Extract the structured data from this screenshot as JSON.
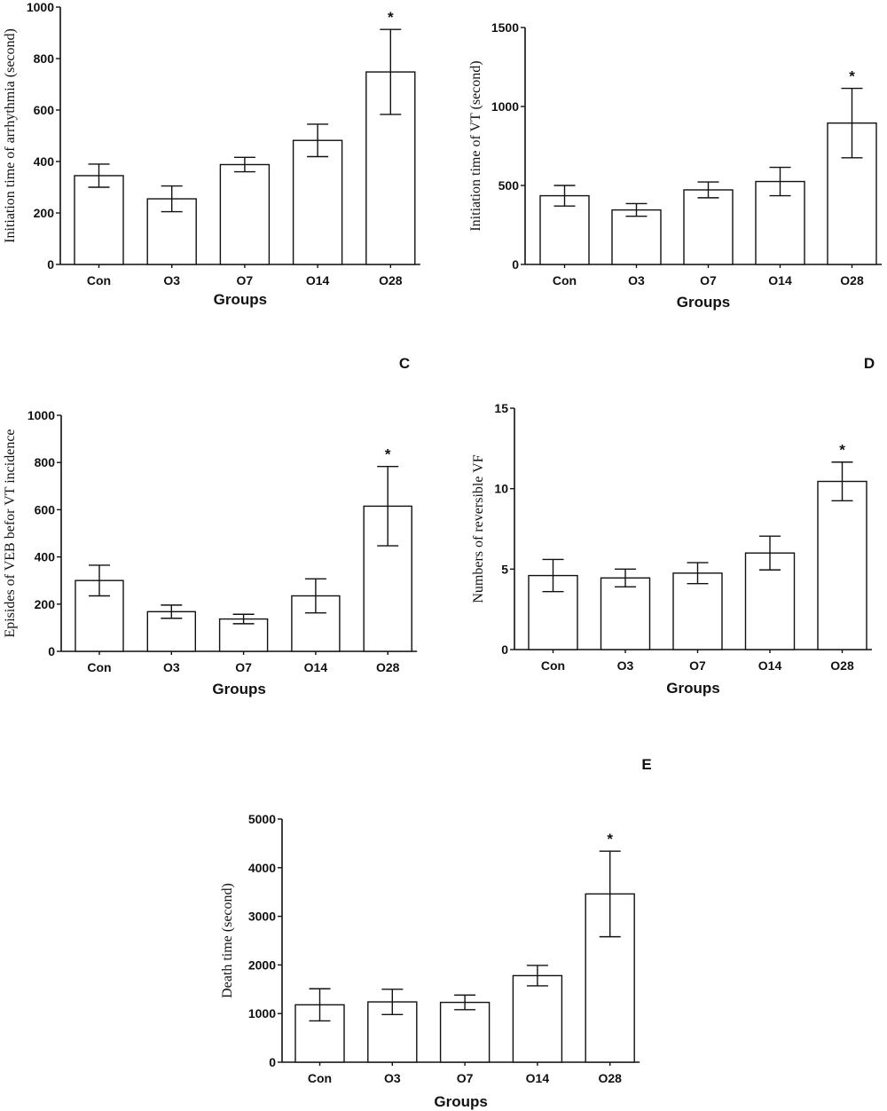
{
  "chart_data": [
    {
      "type": "bar",
      "panel_label": "",
      "categories": [
        "Con",
        "O3",
        "O7",
        "O14",
        "O28"
      ],
      "values": [
        345,
        255,
        388,
        482,
        748
      ],
      "errors": [
        45,
        50,
        28,
        63,
        165
      ],
      "significance": [
        "",
        "",
        "",
        "",
        "*"
      ],
      "xlabel": "Groups",
      "ylabel": "Initiation time of arrhythmia (second)",
      "ylim": [
        0,
        1000
      ],
      "yticks": [
        0,
        200,
        400,
        600,
        800,
        1000
      ]
    },
    {
      "type": "bar",
      "panel_label": "",
      "categories": [
        "Con",
        "O3",
        "O7",
        "O14",
        "O28"
      ],
      "values": [
        435,
        345,
        472,
        525,
        895
      ],
      "errors": [
        65,
        40,
        50,
        90,
        220
      ],
      "significance": [
        "",
        "",
        "",
        "",
        "*"
      ],
      "xlabel": "Groups",
      "ylabel": "Initiation time of VT (second)",
      "ylim": [
        0,
        1500
      ],
      "yticks": [
        0,
        500,
        1000,
        1500
      ]
    },
    {
      "type": "bar",
      "panel_label": "C",
      "categories": [
        "Con",
        "O3",
        "O7",
        "O14",
        "O28"
      ],
      "values": [
        300,
        168,
        137,
        235,
        615
      ],
      "errors": [
        65,
        28,
        20,
        72,
        168
      ],
      "significance": [
        "",
        "",
        "",
        "",
        "*"
      ],
      "xlabel": "Groups",
      "ylabel": "Episides of VEB befor VT incidence",
      "ylim": [
        0,
        1000
      ],
      "yticks": [
        0,
        200,
        400,
        600,
        800,
        1000
      ]
    },
    {
      "type": "bar",
      "panel_label": "D",
      "categories": [
        "Con",
        "O3",
        "O7",
        "O14",
        "O28"
      ],
      "values": [
        4.6,
        4.45,
        4.75,
        6.0,
        10.45
      ],
      "errors": [
        1.0,
        0.55,
        0.65,
        1.05,
        1.2
      ],
      "significance": [
        "",
        "",
        "",
        "",
        "*"
      ],
      "xlabel": "Groups",
      "ylabel": "Numbers of reversible VF",
      "ylim": [
        0,
        15
      ],
      "yticks": [
        0,
        5,
        10,
        15
      ]
    },
    {
      "type": "bar",
      "panel_label": "E",
      "categories": [
        "Con",
        "O3",
        "O7",
        "O14",
        "O28"
      ],
      "values": [
        1180,
        1240,
        1230,
        1780,
        3460
      ],
      "errors": [
        330,
        260,
        150,
        210,
        880
      ],
      "significance": [
        "",
        "",
        "",
        "",
        "*"
      ],
      "xlabel": "Groups",
      "ylabel": "Death time (second)",
      "ylim": [
        0,
        5000
      ],
      "yticks": [
        0,
        1000,
        2000,
        3000,
        4000,
        5000
      ]
    }
  ]
}
